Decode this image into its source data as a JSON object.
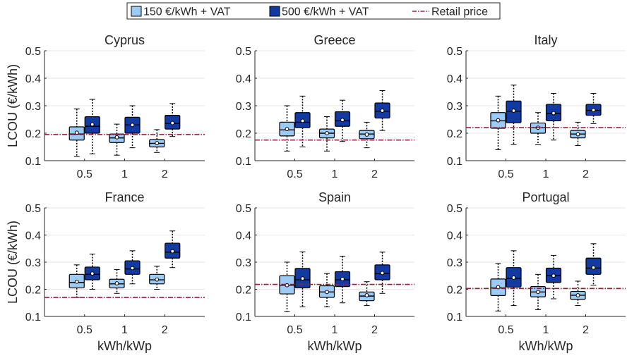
{
  "legend": {
    "entries": [
      {
        "label": "150 €/kWh + VAT",
        "color": "#9ccbf5",
        "kind": "box"
      },
      {
        "label": "500 €/kWh + VAT",
        "color": "#123aa2",
        "kind": "box"
      },
      {
        "label": "Retail price",
        "color": "#9b1b3f",
        "kind": "dashdot"
      }
    ],
    "placement": "top-center"
  },
  "colors": {
    "light_box": "#9ccbf5",
    "dark_box": "#123aa2",
    "retail_line": "#9b1b3f",
    "grid": "#e6e6e6",
    "axis": "#262626"
  },
  "chart_data": [
    {
      "type": "box",
      "title": "Cyprus",
      "xlabel": "",
      "ylabel": "LCOU (€/kWh)",
      "ylim": [
        0.1,
        0.5
      ],
      "yticks": [
        0.1,
        0.2,
        0.3,
        0.4,
        0.5
      ],
      "categories": [
        "0.5",
        "1",
        "2"
      ],
      "retail_price": 0.195,
      "grid": "horizontal",
      "series": [
        {
          "values": [
            {
              "min": 0.115,
              "q1": 0.175,
              "median": 0.197,
              "q3": 0.223,
              "max": 0.288,
              "mean": 0.202
            },
            {
              "min": 0.12,
              "q1": 0.166,
              "median": 0.183,
              "q3": 0.197,
              "max": 0.233,
              "mean": 0.185
            },
            {
              "min": 0.13,
              "q1": 0.15,
              "median": 0.163,
              "q3": 0.177,
              "max": 0.213,
              "mean": 0.164
            }
          ]
        },
        {
          "values": [
            {
              "min": 0.125,
              "q1": 0.2,
              "median": 0.225,
              "q3": 0.26,
              "max": 0.323,
              "mean": 0.232
            },
            {
              "min": 0.147,
              "q1": 0.2,
              "median": 0.23,
              "q3": 0.258,
              "max": 0.3,
              "mean": 0.23
            },
            {
              "min": 0.188,
              "q1": 0.215,
              "median": 0.235,
              "q3": 0.265,
              "max": 0.308,
              "mean": 0.237
            }
          ]
        }
      ]
    },
    {
      "type": "box",
      "title": "Greece",
      "xlabel": "",
      "ylabel": "",
      "ylim": [
        0.1,
        0.5
      ],
      "yticks": [
        0.1,
        0.2,
        0.3,
        0.4,
        0.5
      ],
      "categories": [
        "0.5",
        "1",
        "2"
      ],
      "retail_price": 0.175,
      "grid": "horizontal",
      "series": [
        {
          "values": [
            {
              "min": 0.135,
              "q1": 0.19,
              "median": 0.212,
              "q3": 0.24,
              "max": 0.3,
              "mean": 0.215
            },
            {
              "min": 0.135,
              "q1": 0.183,
              "median": 0.2,
              "q3": 0.215,
              "max": 0.26,
              "mean": 0.2
            },
            {
              "min": 0.147,
              "q1": 0.18,
              "median": 0.197,
              "q3": 0.21,
              "max": 0.24,
              "mean": 0.195
            }
          ]
        },
        {
          "values": [
            {
              "min": 0.15,
              "q1": 0.22,
              "median": 0.24,
              "q3": 0.275,
              "max": 0.335,
              "mean": 0.245
            },
            {
              "min": 0.17,
              "q1": 0.225,
              "median": 0.245,
              "q3": 0.278,
              "max": 0.32,
              "mean": 0.248
            },
            {
              "min": 0.21,
              "q1": 0.255,
              "median": 0.28,
              "q3": 0.31,
              "max": 0.355,
              "mean": 0.282
            }
          ]
        }
      ]
    },
    {
      "type": "box",
      "title": "Italy",
      "xlabel": "",
      "ylabel": "",
      "ylim": [
        0.1,
        0.5
      ],
      "yticks": [
        0.1,
        0.2,
        0.3,
        0.4,
        0.5
      ],
      "categories": [
        "0.5",
        "1",
        "2"
      ],
      "retail_price": 0.22,
      "grid": "horizontal",
      "series": [
        {
          "values": [
            {
              "min": 0.14,
              "q1": 0.218,
              "median": 0.245,
              "q3": 0.275,
              "max": 0.335,
              "mean": 0.247
            },
            {
              "min": 0.158,
              "q1": 0.2,
              "median": 0.22,
              "q3": 0.237,
              "max": 0.275,
              "mean": 0.22
            },
            {
              "min": 0.155,
              "q1": 0.183,
              "median": 0.197,
              "q3": 0.21,
              "max": 0.24,
              "mean": 0.196
            }
          ]
        },
        {
          "values": [
            {
              "min": 0.158,
              "q1": 0.238,
              "median": 0.28,
              "q3": 0.317,
              "max": 0.375,
              "mean": 0.282
            },
            {
              "min": 0.175,
              "q1": 0.245,
              "median": 0.272,
              "q3": 0.305,
              "max": 0.345,
              "mean": 0.273
            },
            {
              "min": 0.235,
              "q1": 0.265,
              "median": 0.283,
              "q3": 0.305,
              "max": 0.345,
              "mean": 0.284
            }
          ]
        }
      ]
    },
    {
      "type": "box",
      "title": "France",
      "xlabel": "kWh/kWp",
      "ylabel": "LCOU (€/kWh)",
      "ylim": [
        0.1,
        0.5
      ],
      "yticks": [
        0.1,
        0.2,
        0.3,
        0.4,
        0.5
      ],
      "categories": [
        "0.5",
        "1",
        "2"
      ],
      "retail_price": 0.17,
      "grid": "horizontal",
      "series": [
        {
          "values": [
            {
              "min": 0.17,
              "q1": 0.205,
              "median": 0.225,
              "q3": 0.255,
              "max": 0.29,
              "mean": 0.228
            },
            {
              "min": 0.185,
              "q1": 0.205,
              "median": 0.22,
              "q3": 0.237,
              "max": 0.273,
              "mean": 0.222
            },
            {
              "min": 0.2,
              "q1": 0.22,
              "median": 0.235,
              "q3": 0.255,
              "max": 0.285,
              "mean": 0.236
            }
          ]
        },
        {
          "values": [
            {
              "min": 0.2,
              "q1": 0.235,
              "median": 0.255,
              "q3": 0.282,
              "max": 0.33,
              "mean": 0.258
            },
            {
              "min": 0.22,
              "q1": 0.255,
              "median": 0.275,
              "q3": 0.305,
              "max": 0.342,
              "mean": 0.278
            },
            {
              "min": 0.28,
              "q1": 0.315,
              "median": 0.337,
              "q3": 0.37,
              "max": 0.415,
              "mean": 0.34
            }
          ]
        }
      ]
    },
    {
      "type": "box",
      "title": "Spain",
      "xlabel": "kWh/kWp",
      "ylabel": "",
      "ylim": [
        0.1,
        0.5
      ],
      "yticks": [
        0.1,
        0.2,
        0.3,
        0.4,
        0.5
      ],
      "categories": [
        "0.5",
        "1",
        "2"
      ],
      "retail_price": 0.218,
      "grid": "horizontal",
      "series": [
        {
          "values": [
            {
              "min": 0.118,
              "q1": 0.183,
              "median": 0.215,
              "q3": 0.25,
              "max": 0.3,
              "mean": 0.215
            },
            {
              "min": 0.135,
              "q1": 0.17,
              "median": 0.19,
              "q3": 0.213,
              "max": 0.258,
              "mean": 0.19
            },
            {
              "min": 0.14,
              "q1": 0.158,
              "median": 0.175,
              "q3": 0.19,
              "max": 0.228,
              "mean": 0.178
            }
          ]
        },
        {
          "values": [
            {
              "min": 0.135,
              "q1": 0.205,
              "median": 0.235,
              "q3": 0.277,
              "max": 0.338,
              "mean": 0.24
            },
            {
              "min": 0.15,
              "q1": 0.21,
              "median": 0.235,
              "q3": 0.265,
              "max": 0.322,
              "mean": 0.238
            },
            {
              "min": 0.185,
              "q1": 0.235,
              "median": 0.258,
              "q3": 0.29,
              "max": 0.337,
              "mean": 0.26
            }
          ]
        }
      ]
    },
    {
      "type": "box",
      "title": "Portugal",
      "xlabel": "kWh/kWp",
      "ylabel": "",
      "ylim": [
        0.1,
        0.5
      ],
      "yticks": [
        0.1,
        0.2,
        0.3,
        0.4,
        0.5
      ],
      "categories": [
        "0.5",
        "1",
        "2"
      ],
      "retail_price": 0.203,
      "grid": "horizontal",
      "series": [
        {
          "values": [
            {
              "min": 0.12,
              "q1": 0.177,
              "median": 0.205,
              "q3": 0.238,
              "max": 0.295,
              "mean": 0.208
            },
            {
              "min": 0.125,
              "q1": 0.172,
              "median": 0.19,
              "q3": 0.21,
              "max": 0.255,
              "mean": 0.19
            },
            {
              "min": 0.14,
              "q1": 0.163,
              "median": 0.178,
              "q3": 0.192,
              "max": 0.23,
              "mean": 0.178
            }
          ]
        },
        {
          "values": [
            {
              "min": 0.14,
              "q1": 0.208,
              "median": 0.24,
              "q3": 0.28,
              "max": 0.342,
              "mean": 0.243
            },
            {
              "min": 0.165,
              "q1": 0.225,
              "median": 0.25,
              "q3": 0.278,
              "max": 0.325,
              "mean": 0.25
            },
            {
              "min": 0.215,
              "q1": 0.255,
              "median": 0.278,
              "q3": 0.315,
              "max": 0.368,
              "mean": 0.28
            }
          ]
        }
      ]
    }
  ]
}
